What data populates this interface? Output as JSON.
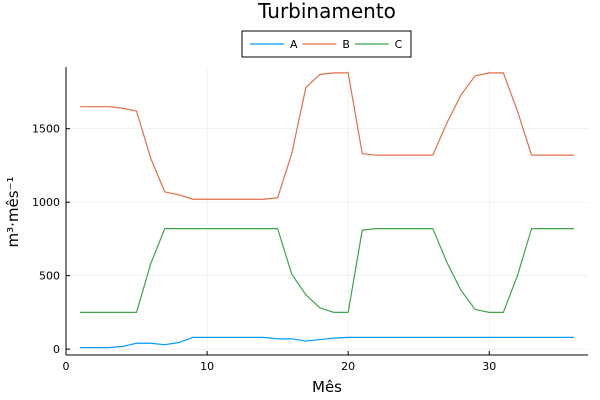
{
  "chart_data": {
    "type": "line",
    "title": "Turbinamento",
    "xlabel": "Mês",
    "ylabel": "m³·mês⁻¹",
    "xlim": [
      0,
      37
    ],
    "ylim": [
      -40,
      1920
    ],
    "xticks": [
      0,
      10,
      20,
      30
    ],
    "yticks": [
      0,
      500,
      1000,
      1500
    ],
    "grid": true,
    "legend": "top-center",
    "x": [
      1,
      2,
      3,
      4,
      5,
      6,
      7,
      8,
      9,
      10,
      11,
      12,
      13,
      14,
      15,
      16,
      17,
      18,
      19,
      20,
      21,
      22,
      23,
      24,
      25,
      26,
      27,
      28,
      29,
      30,
      31,
      32,
      33,
      34,
      35,
      36
    ],
    "series": [
      {
        "name": "A",
        "color": "#009AFA",
        "values": [
          10,
          10,
          10,
          18,
          40,
          40,
          30,
          45,
          80,
          80,
          80,
          80,
          80,
          80,
          70,
          70,
          55,
          65,
          75,
          80,
          80,
          80,
          80,
          80,
          80,
          80,
          80,
          80,
          80,
          80,
          80,
          80,
          80,
          80,
          80,
          80
        ]
      },
      {
        "name": "B",
        "color": "#E36F47",
        "values": [
          1650,
          1650,
          1650,
          1640,
          1620,
          1300,
          1070,
          1050,
          1020,
          1020,
          1020,
          1020,
          1020,
          1020,
          1030,
          1330,
          1780,
          1870,
          1880,
          1880,
          1330,
          1320,
          1320,
          1320,
          1320,
          1320,
          1540,
          1730,
          1860,
          1880,
          1880,
          1620,
          1320,
          1320,
          1320,
          1320
        ]
      },
      {
        "name": "C",
        "color": "#3EA44E",
        "values": [
          250,
          250,
          250,
          250,
          250,
          580,
          820,
          820,
          820,
          820,
          820,
          820,
          820,
          820,
          820,
          510,
          370,
          280,
          250,
          250,
          810,
          820,
          820,
          820,
          820,
          820,
          590,
          400,
          270,
          250,
          250,
          500,
          820,
          820,
          820,
          820
        ]
      }
    ]
  }
}
